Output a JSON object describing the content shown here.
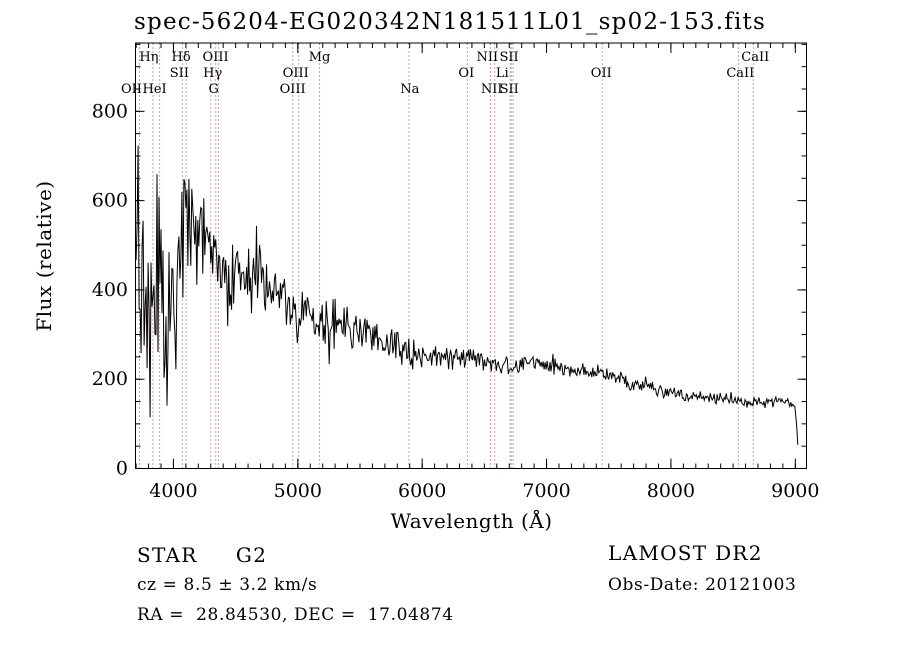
{
  "title": "spec-56204-EG020342N181511L01_sp02-153.fits",
  "annotations": {
    "class_label": "STAR     G2",
    "survey": "LAMOST DR2",
    "cz": "cz = 8.5 ± 3.2 km/s",
    "obs_date": "Obs-Date: 20121003",
    "coords": "RA =  28.84530, DEC =  17.04874"
  },
  "chart_data": {
    "type": "line",
    "title": "spec-56204-EG020342N181511L01_sp02-153.fits",
    "xlabel": "Wavelength (Å)",
    "ylabel": "Flux (relative)",
    "xlim": [
      3695,
      9090
    ],
    "ylim": [
      0,
      953
    ],
    "x_ticks": [
      4000,
      5000,
      6000,
      7000,
      8000,
      9000
    ],
    "y_ticks": [
      0,
      200,
      400,
      600,
      800
    ],
    "x_minor_step": 100,
    "y_minor_step": 50,
    "grid": false,
    "legend": "none",
    "line_color": "#000000",
    "marker_line_color": "#a04030",
    "spectral_lines": [
      {
        "name": "OII",
        "wavelength": 3727
      },
      {
        "name": "Hη",
        "wavelength": 3835
      },
      {
        "name": "HeI",
        "wavelength": 3889
      },
      {
        "name": "SII",
        "wavelength": 4072
      },
      {
        "name": "Hδ",
        "wavelength": 4102
      },
      {
        "name": "G",
        "wavelength": 4300
      },
      {
        "name": "Hγ",
        "wavelength": 4340
      },
      {
        "name": "OIII",
        "wavelength": 4363
      },
      {
        "name": "OIII",
        "wavelength": 4959
      },
      {
        "name": "OIII",
        "wavelength": 5007
      },
      {
        "name": "Mg",
        "wavelength": 5175
      },
      {
        "name": "Na",
        "wavelength": 5893
      },
      {
        "name": "OI",
        "wavelength": 6363
      },
      {
        "name": "NII",
        "wavelength": 6548
      },
      {
        "name": "NII",
        "wavelength": 6583
      },
      {
        "name": "Li",
        "wavelength": 6708
      },
      {
        "name": "SII",
        "wavelength": 6716
      },
      {
        "name": "SII",
        "wavelength": 6731
      },
      {
        "name": "OII",
        "wavelength": 7448
      },
      {
        "name": "CaII",
        "wavelength": 8542
      },
      {
        "name": "CaII",
        "wavelength": 8662
      }
    ],
    "line_labels": [
      {
        "text": "Hη",
        "row": 1,
        "wavelength": 3835,
        "dx": -4
      },
      {
        "text": "Hδ",
        "row": 1,
        "wavelength": 4102,
        "dx": -5
      },
      {
        "text": "OIII",
        "row": 1,
        "wavelength": 4363,
        "dx": -3
      },
      {
        "text": "Mg",
        "row": 1,
        "wavelength": 5175,
        "dx": 0
      },
      {
        "text": "NII",
        "row": 1,
        "wavelength": 6548,
        "dx": -3
      },
      {
        "text": "SII",
        "row": 1,
        "wavelength": 6731,
        "dx": -4
      },
      {
        "text": "CaII",
        "row": 1,
        "wavelength": 8662,
        "dx": 2
      },
      {
        "text": "SII",
        "row": 2,
        "wavelength": 4072,
        "dx": -3
      },
      {
        "text": "Hγ",
        "row": 2,
        "wavelength": 4340,
        "dx": -3
      },
      {
        "text": "OIII",
        "row": 2,
        "wavelength": 4959,
        "dx": 3
      },
      {
        "text": "OI",
        "row": 2,
        "wavelength": 6363,
        "dx": -1
      },
      {
        "text": "Li",
        "row": 2,
        "wavelength": 6708,
        "dx": -8
      },
      {
        "text": "OII",
        "row": 2,
        "wavelength": 7448,
        "dx": -1
      },
      {
        "text": "CaII",
        "row": 2,
        "wavelength": 8542,
        "dx": 2
      },
      {
        "text": "OII",
        "row": 3,
        "wavelength": 3727,
        "dx": -8
      },
      {
        "text": "HeI",
        "row": 3,
        "wavelength": 3889,
        "dx": -5
      },
      {
        "text": "G",
        "row": 3,
        "wavelength": 4300,
        "dx": 3
      },
      {
        "text": "OIII",
        "row": 3,
        "wavelength": 5007,
        "dx": -6
      },
      {
        "text": "Na",
        "row": 3,
        "wavelength": 5893,
        "dx": 1
      },
      {
        "text": "NII",
        "row": 3,
        "wavelength": 6583,
        "dx": -3
      },
      {
        "text": "SII",
        "row": 3,
        "wavelength": 6716,
        "dx": -2
      }
    ],
    "continuum": [
      [
        3700,
        450
      ],
      [
        3712,
        745
      ],
      [
        3724,
        340
      ],
      [
        3745,
        480
      ],
      [
        3775,
        405
      ],
      [
        3810,
        330
      ],
      [
        3845,
        275
      ],
      [
        3868,
        420
      ],
      [
        3900,
        430
      ],
      [
        3930,
        295
      ],
      [
        3962,
        350
      ],
      [
        4000,
        420
      ],
      [
        4040,
        445
      ],
      [
        4080,
        520
      ],
      [
        4125,
        545
      ],
      [
        4165,
        560
      ],
      [
        4200,
        510
      ],
      [
        4240,
        550
      ],
      [
        4280,
        470
      ],
      [
        4320,
        465
      ],
      [
        4360,
        470
      ],
      [
        4400,
        450
      ],
      [
        4450,
        430
      ],
      [
        4500,
        440
      ],
      [
        4550,
        425
      ],
      [
        4600,
        432
      ],
      [
        4700,
        415
      ],
      [
        4800,
        395
      ],
      [
        4900,
        372
      ],
      [
        5000,
        342
      ],
      [
        5100,
        345
      ],
      [
        5200,
        322
      ],
      [
        5300,
        326
      ],
      [
        5400,
        315
      ],
      [
        5500,
        306
      ],
      [
        5600,
        296
      ],
      [
        5700,
        286
      ],
      [
        5800,
        272
      ],
      [
        5900,
        256
      ],
      [
        6000,
        258
      ],
      [
        6100,
        254
      ],
      [
        6200,
        252
      ],
      [
        6300,
        250
      ],
      [
        6400,
        252
      ],
      [
        6500,
        246
      ],
      [
        6600,
        236
      ],
      [
        6700,
        226
      ],
      [
        6800,
        238
      ],
      [
        6900,
        240
      ],
      [
        7000,
        230
      ],
      [
        7100,
        226
      ],
      [
        7200,
        222
      ],
      [
        7300,
        218
      ],
      [
        7400,
        214
      ],
      [
        7500,
        210
      ],
      [
        7600,
        200
      ],
      [
        7700,
        190
      ],
      [
        7800,
        183
      ],
      [
        7900,
        176
      ],
      [
        8000,
        170
      ],
      [
        8100,
        166
      ],
      [
        8200,
        163
      ],
      [
        8300,
        159
      ],
      [
        8400,
        156
      ],
      [
        8500,
        153
      ],
      [
        8600,
        151
      ],
      [
        8700,
        150
      ],
      [
        8800,
        149
      ],
      [
        8900,
        152
      ],
      [
        8960,
        150
      ],
      [
        9000,
        140
      ],
      [
        9012,
        90
      ],
      [
        9024,
        28
      ]
    ],
    "noise_profile": [
      [
        3700,
        230
      ],
      [
        3760,
        205
      ],
      [
        3850,
        185
      ],
      [
        3950,
        160
      ],
      [
        4050,
        120
      ],
      [
        4150,
        95
      ],
      [
        4250,
        85
      ],
      [
        4350,
        75
      ],
      [
        4500,
        65
      ],
      [
        4700,
        58
      ],
      [
        4900,
        52
      ],
      [
        5100,
        45
      ],
      [
        5300,
        40
      ],
      [
        5500,
        35
      ],
      [
        5700,
        30
      ],
      [
        5900,
        26
      ],
      [
        6100,
        23
      ],
      [
        6300,
        21
      ],
      [
        6500,
        19
      ],
      [
        6700,
        17
      ],
      [
        6900,
        16
      ],
      [
        7100,
        15
      ],
      [
        7300,
        14
      ],
      [
        7500,
        13
      ],
      [
        7700,
        13
      ],
      [
        7900,
        12
      ],
      [
        8100,
        12
      ],
      [
        8300,
        11
      ],
      [
        8500,
        11
      ],
      [
        8700,
        10
      ],
      [
        8900,
        10
      ],
      [
        9030,
        5
      ]
    ],
    "noise_seed": 42
  }
}
